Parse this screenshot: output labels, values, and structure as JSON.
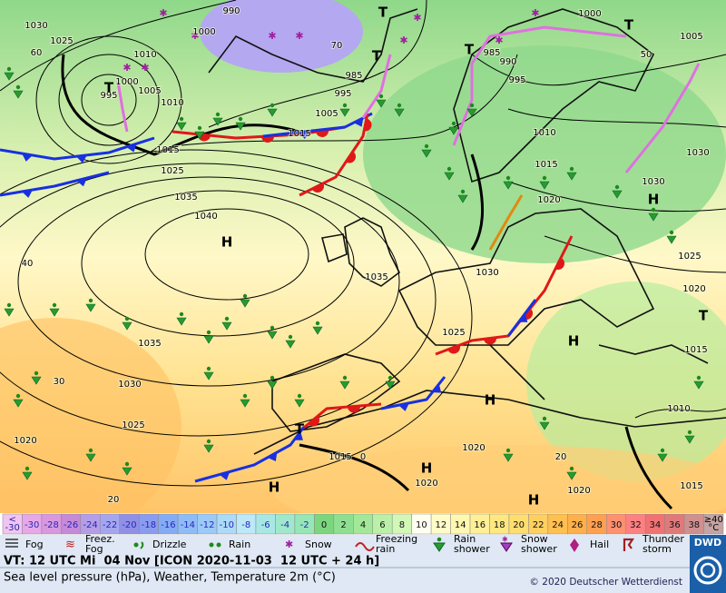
{
  "map": {
    "labels": [
      "1030",
      "1025",
      "1010",
      "1000",
      "995",
      "1005",
      "1010",
      "1015",
      "1025",
      "1035",
      "1040",
      "40",
      "1035",
      "1030",
      "30",
      "1025",
      "1020",
      "20",
      "1015",
      "0",
      "1020",
      "1020",
      "1020",
      "20",
      "1035",
      "1025",
      "1030",
      "1015",
      "1005",
      "995",
      "985",
      "990",
      "1000",
      "1000",
      "1005",
      "985",
      "990",
      "995",
      "1010",
      "1015",
      "1020",
      "1030",
      "1030",
      "1025",
      "1020",
      "1015",
      "1010",
      "1015",
      "50",
      "60",
      "70"
    ],
    "highs": [
      "H",
      "H",
      "H",
      "H",
      "H",
      "H",
      "H"
    ],
    "lows": [
      "T",
      "T",
      "T",
      "T",
      "T",
      "T",
      "T"
    ]
  },
  "scale": {
    "low": {
      "top": "<",
      "bottom": "-30",
      "color": "#f2c4f2"
    },
    "values": [
      -30,
      -28,
      -26,
      -24,
      -22,
      -20,
      -18,
      -16,
      -14,
      -12,
      -10,
      -8,
      -6,
      -4,
      -2,
      0,
      2,
      4,
      6,
      8,
      10,
      12,
      14,
      16,
      18,
      20,
      22,
      24,
      26,
      28,
      30,
      32,
      34,
      36,
      38
    ],
    "colors": [
      "#e6a8e8",
      "#d898e0",
      "#c58ad8",
      "#b49ee8",
      "#a6a6f0",
      "#9090e6",
      "#8a9cf0",
      "#84acf6",
      "#8ebcf8",
      "#9ccaf8",
      "#acdaf8",
      "#bce8f8",
      "#a8e8e4",
      "#a0e8cc",
      "#96e6b6",
      "#7cd67e",
      "#8ee090",
      "#a2e898",
      "#baf0a8",
      "#d2f8b8",
      "#fffff0",
      "#fffcc8",
      "#fff8b0",
      "#fff098",
      "#ffe880",
      "#ffde70",
      "#ffd060",
      "#ffc050",
      "#ffb048",
      "#ffa050",
      "#ff9070",
      "#ff8080",
      "#f07272",
      "#e07a7a",
      "#d09090"
    ],
    "high": {
      "top": "≥40",
      "bottom": "°C",
      "color": "#c4a4a4"
    }
  },
  "legend": [
    {
      "lines": [
        "Fog"
      ]
    },
    {
      "lines": [
        "Freez.",
        "Fog"
      ]
    },
    {
      "lines": [
        "Drizzle"
      ]
    },
    {
      "lines": [
        "Rain"
      ]
    },
    {
      "lines": [
        "Snow"
      ]
    },
    {
      "lines": [
        "Freezing",
        "rain"
      ]
    },
    {
      "lines": [
        "Rain",
        "shower"
      ]
    },
    {
      "lines": [
        "Snow",
        "shower"
      ]
    },
    {
      "lines": [
        "Hail"
      ]
    },
    {
      "lines": [
        "Thunder",
        "storm"
      ]
    }
  ],
  "logo": "DWD",
  "footer": {
    "valid_time": "VT: 12 UTC Mi  04 Nov [ICON 2020-11-03  12 UTC + 24 h]",
    "description": "Sea level pressure (hPa), Weather, Temperature 2m (°C)",
    "copyright": "© 2020 Deutscher Wetterdienst"
  }
}
